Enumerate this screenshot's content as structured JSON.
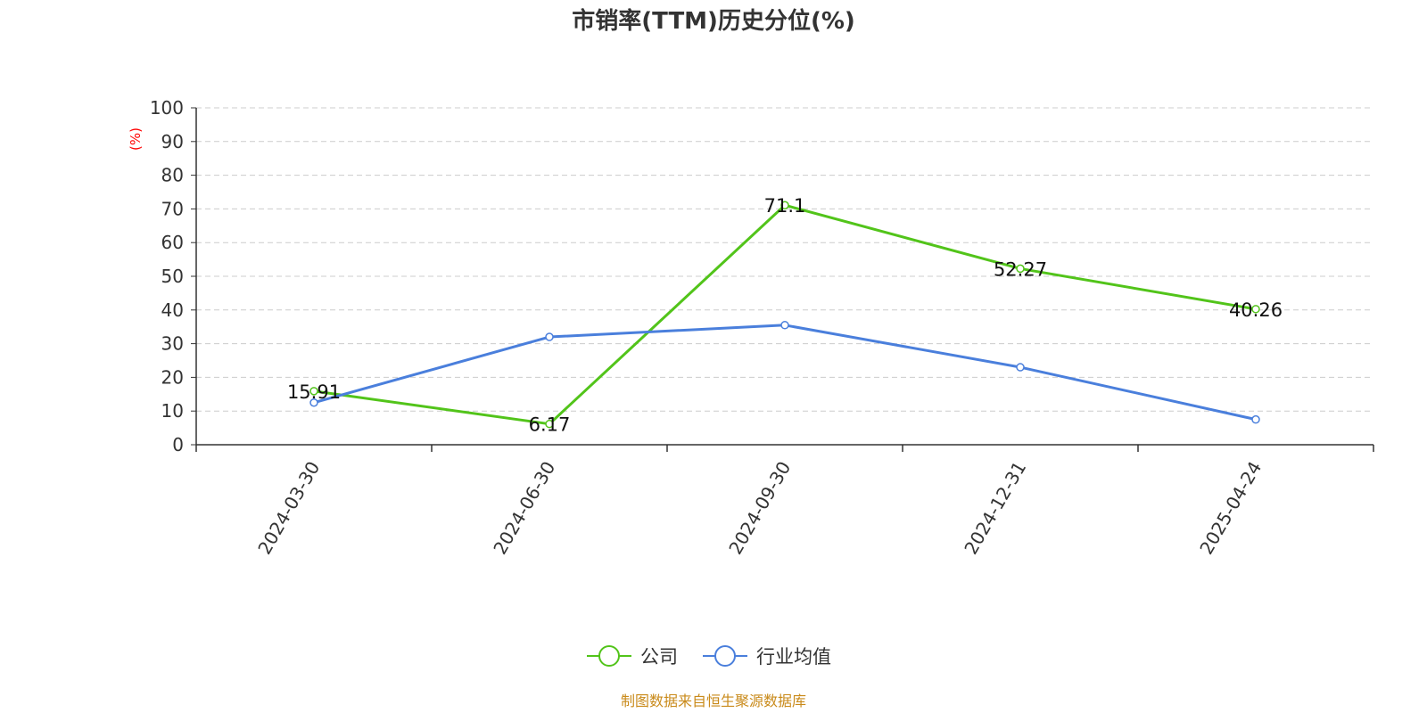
{
  "chart_data": {
    "type": "line",
    "title": "市销率(TTM)历史分位(%)",
    "ylabel": "(%)",
    "categories": [
      "2024-03-30",
      "2024-06-30",
      "2024-09-30",
      "2024-12-31",
      "2025-04-24"
    ],
    "ylim": [
      0,
      100
    ],
    "yticks": [
      0,
      10,
      20,
      30,
      40,
      50,
      60,
      70,
      80,
      90,
      100
    ],
    "grid": true,
    "legend_position": "bottom-center",
    "series": [
      {
        "name": "公司",
        "values": [
          15.91,
          6.17,
          71.1,
          52.27,
          40.26
        ],
        "color": "#52c41a",
        "show_labels": true
      },
      {
        "name": "行业均值",
        "values": [
          12.5,
          32.0,
          35.5,
          23.0,
          7.5
        ],
        "color": "#4a7fdc",
        "show_labels": false
      }
    ]
  },
  "colors": {
    "axis": "#333333",
    "grid": "#cccccc",
    "unit_label": "#ff0000",
    "source": "#c98a1a"
  },
  "source_text": "制图数据来自恒生聚源数据库"
}
